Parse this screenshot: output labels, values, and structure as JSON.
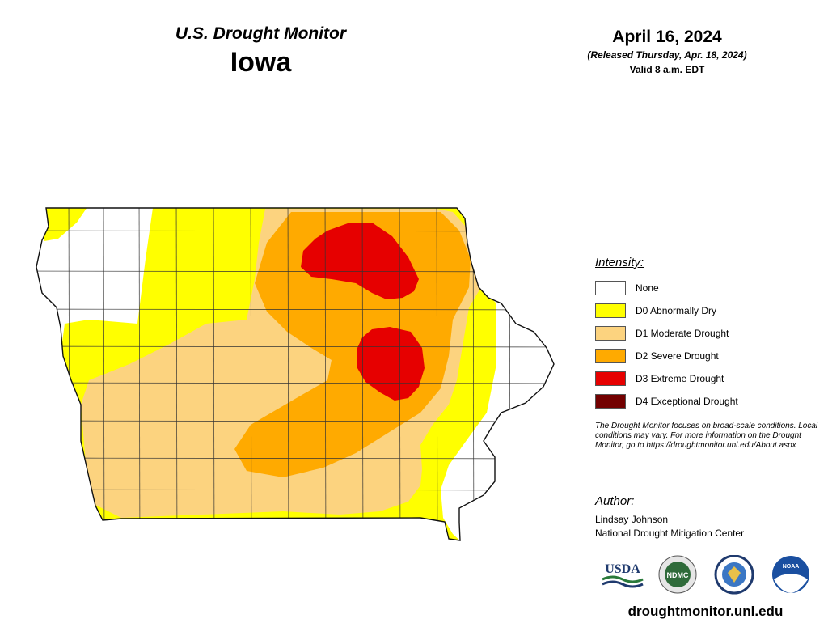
{
  "header": {
    "product": "U.S. Drought Monitor",
    "state": "Iowa",
    "date": "April 16, 2024",
    "released": "(Released Thursday, Apr. 18, 2024)",
    "valid": "Valid 8 a.m. EDT"
  },
  "legend": {
    "title": "Intensity:",
    "items": [
      {
        "label": "None",
        "color": "#ffffff"
      },
      {
        "label": "D0 Abnormally Dry",
        "color": "#ffff00"
      },
      {
        "label": "D1 Moderate Drought",
        "color": "#fcd37f"
      },
      {
        "label": "D2 Severe Drought",
        "color": "#ffaa00"
      },
      {
        "label": "D3 Extreme Drought",
        "color": "#e60000"
      },
      {
        "label": "D4 Exceptional Drought",
        "color": "#730000"
      }
    ]
  },
  "note": "The Drought Monitor focuses on broad-scale conditions. Local conditions may vary. For more information on the Drought Monitor, go to https://droughtmonitor.unl.edu/About.aspx",
  "author": {
    "title": "Author:",
    "name": "Lindsay Johnson",
    "org": "National Drought Mitigation Center"
  },
  "logos": {
    "usda": "USDA",
    "ndmc": "NDMC",
    "noaa": "NOAA"
  },
  "website": "droughtmonitor.unl.edu"
}
